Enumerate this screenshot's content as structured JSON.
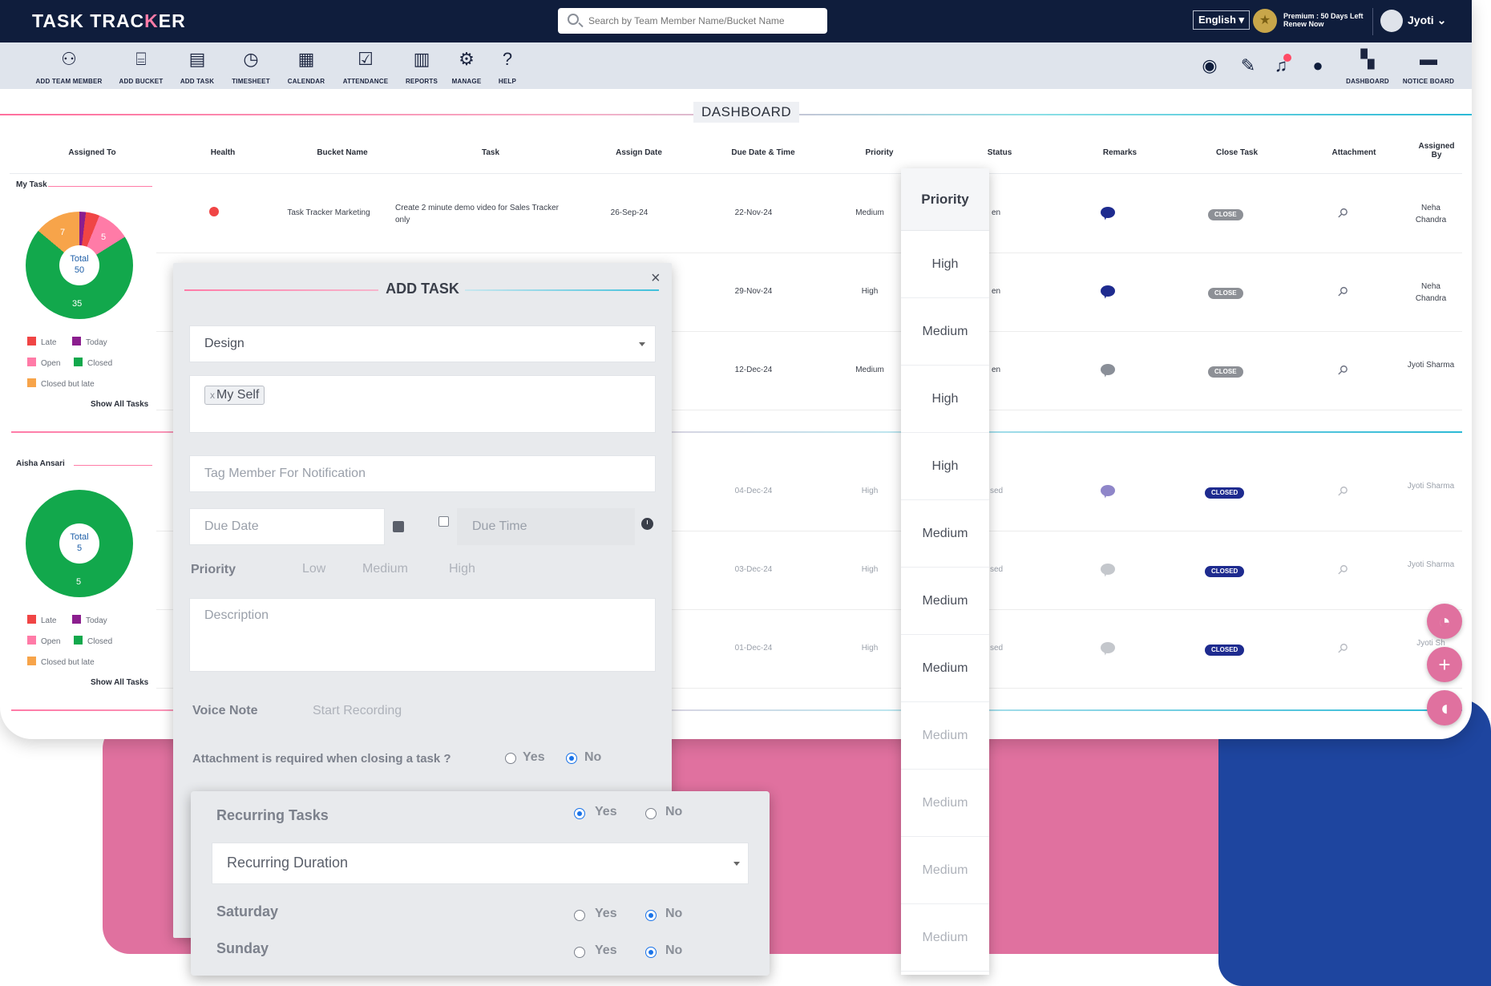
{
  "app": {
    "logo_left": "TASK TRAC",
    "logo_accent": "K",
    "logo_right": "ER",
    "search_placeholder": "Search by Team Member Name/Bucket Name",
    "language": "English ▾",
    "premium_line1": "Premium : 50 Days Left",
    "premium_line2": "Renew Now",
    "user_name": "Jyoti ⌄"
  },
  "toolbar": {
    "items": [
      {
        "label": "ADD TEAM MEMBER",
        "icon": "add-team-member-icon"
      },
      {
        "label": "ADD BUCKET",
        "icon": "bucket-icon"
      },
      {
        "label": "ADD TASK",
        "icon": "add-task-icon"
      },
      {
        "label": "TIMESHEET",
        "icon": "timesheet-icon"
      },
      {
        "label": "CALENDAR",
        "icon": "calendar-icon"
      },
      {
        "label": "ATTENDANCE",
        "icon": "attendance-icon"
      },
      {
        "label": "REPORTS",
        "icon": "reports-icon"
      },
      {
        "label": "MANAGE",
        "icon": "manage-icon"
      },
      {
        "label": "HELP",
        "icon": "help-icon"
      }
    ],
    "right": [
      {
        "label": "DASHBOARD",
        "icon": "dashboard-icon"
      },
      {
        "label": "NOTICE BOARD",
        "icon": "notice-board-icon"
      }
    ]
  },
  "dashboard": {
    "title": "DASHBOARD",
    "columns": [
      "Assigned To",
      "Health",
      "Bucket Name",
      "Task",
      "Assign Date",
      "Due Date & Time",
      "Priority",
      "Status",
      "Remarks",
      "Close Task",
      "Attachment",
      "Assigned By"
    ],
    "rows": [
      {
        "bucket": "Task Tracker Marketing",
        "task": "Create 2 minute demo video for Sales Tracker only",
        "assign_date": "26-Sep-24",
        "due": "22-Nov-24",
        "priority": "Medium",
        "status": "en",
        "close": "CLOSE",
        "by": "Neha Chandra"
      },
      {
        "due": "29-Nov-24",
        "priority": "High",
        "status": "en",
        "close": "CLOSE",
        "by": "Neha Chandra"
      },
      {
        "due": "12-Dec-24",
        "priority": "Medium",
        "status": "en",
        "close": "CLOSE",
        "by": "Jyoti Sharma"
      },
      {
        "due": "04-Dec-24",
        "priority": "High",
        "status": "sed",
        "close": "CLOSED",
        "by": "Jyoti Sharma"
      },
      {
        "due": "03-Dec-24",
        "priority": "High",
        "status": "sed",
        "close": "CLOSED",
        "by": "Jyoti Sharma"
      },
      {
        "due": "01-Dec-24",
        "priority": "High",
        "status": "sed",
        "close": "CLOSED",
        "by": "Jyoti Sh"
      }
    ]
  },
  "my_task": {
    "title": "My Task",
    "total_label": "Total",
    "total": "50",
    "chart_labels": {
      "orange": "7",
      "pink": "5",
      "green": "35"
    },
    "legend": [
      "Late",
      "Today",
      "Open",
      "Closed",
      "Closed but late"
    ],
    "show_all": "Show All Tasks"
  },
  "aisha": {
    "title": "Aisha Ansari",
    "total_label": "Total",
    "total": "5",
    "chart_labels": {
      "green": "5"
    },
    "legend": [
      "Late",
      "Today",
      "Open",
      "Closed",
      "Closed but late"
    ],
    "show_all": "Show All Tasks"
  },
  "priority_dropdown": {
    "header": "Priority",
    "items": [
      "High",
      "Medium",
      "High",
      "High",
      "Medium",
      "Medium",
      "Medium",
      "Medium",
      "Medium",
      "Medium",
      "Medium"
    ]
  },
  "add_task": {
    "title": "ADD TASK",
    "close": "×",
    "bucket_value": "Design",
    "assignee_chip": "My Self",
    "chip_x": "x",
    "tag_placeholder": "Tag Member For Notification",
    "due_date_placeholder": "Due Date",
    "due_time_placeholder": "Due Time",
    "priority_label": "Priority",
    "priority_options": [
      "Low",
      "Medium",
      "High"
    ],
    "description_placeholder": "Description",
    "voice_note_label": "Voice Note",
    "start_recording": "Start Recording",
    "attachment_question": "Attachment is required when closing a task ?",
    "yes": "Yes",
    "no": "No"
  },
  "recurring": {
    "label": "Recurring Tasks",
    "duration_placeholder": "Recurring Duration",
    "saturday": "Saturday",
    "sunday": "Sunday",
    "yes": "Yes",
    "no": "No"
  },
  "colors": {
    "late": "#f04545",
    "today": "#8b1e8e",
    "open": "#ff7ba7",
    "closed": "#12a84c",
    "closed_but_late": "#f7a44a",
    "brand_navy": "#0f1d3c",
    "brand_pink": "#e0719f"
  }
}
